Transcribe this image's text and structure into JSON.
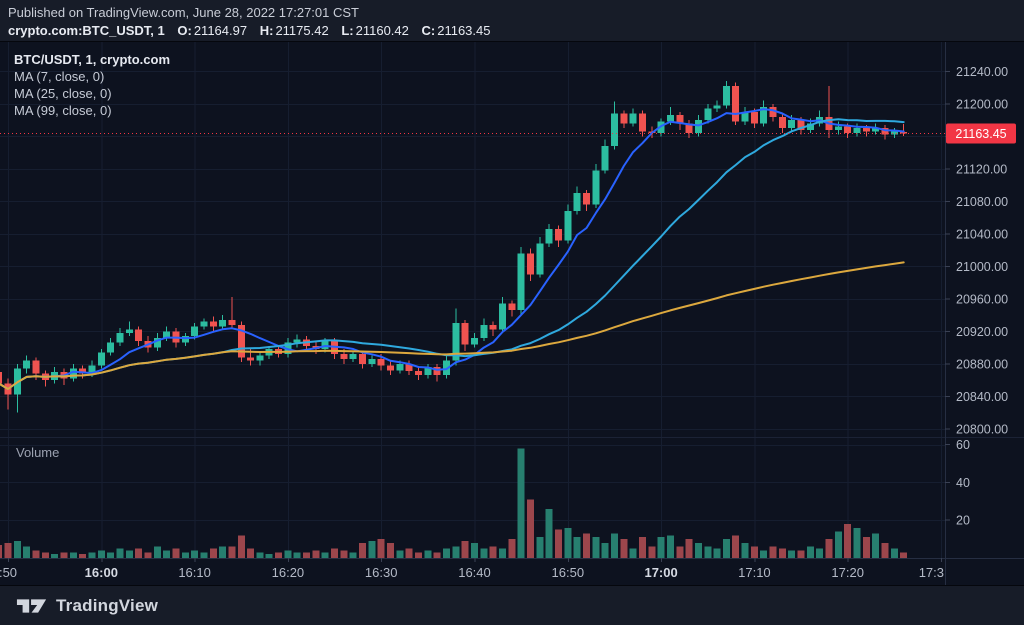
{
  "header": {
    "published_line": "Published on TradingView.com, June 28, 2022 17:27:01 CST",
    "symbol": "crypto.com:BTC_USDT, 1",
    "ohlc": {
      "o_label": "O:",
      "o": "21164.97",
      "h_label": "H:",
      "h": "21175.42",
      "l_label": "L:",
      "l": "21160.42",
      "c_label": "C:",
      "c": "21163.45"
    }
  },
  "legend": {
    "title": "BTC/USDT, 1, crypto.com",
    "ma": [
      "MA (7, close, 0)",
      "MA (25, close, 0)",
      "MA (99, close, 0)"
    ]
  },
  "volume_pane": {
    "label": "Volume"
  },
  "footer": {
    "brand": "TradingView"
  },
  "colors": {
    "background": "#0d121f",
    "panel": "#171c28",
    "up": "#2cbda0",
    "down": "#f05350",
    "vol_up": "#277f6f",
    "vol_down": "#9c464c",
    "ma7": "#2962ff",
    "ma25": "#2fa9de",
    "ma99": "#dca83e",
    "grid": "#161e30",
    "axis_border": "#262e42",
    "pane_divider": "#1b2235",
    "tick_dash": "#3a4154",
    "axis_text": "#b4bac7",
    "axis_text_bold": "#d6dae3",
    "price_line": "#f23645",
    "tag_bg": "#f23645",
    "tag_text": "#ffffff"
  },
  "chart_data": {
    "type": "candlestick",
    "title": "BTC/USDT, 1, crypto.com",
    "exchange": "crypto.com",
    "interval_minutes": 1,
    "start_time": "15:50",
    "first_minute": -1,
    "last_price": 21163.45,
    "last_price_label": "21163.45",
    "price_range": [
      20790,
      21276
    ],
    "volume_range": [
      0,
      64
    ],
    "legend_position": "top-left",
    "grid": true,
    "price_ticks": [
      {
        "value": 21240,
        "label": "21240.00"
      },
      {
        "value": 21200,
        "label": "21200.00"
      },
      {
        "value": 21160,
        "label": "21160.00",
        "hidden": true
      },
      {
        "value": 21120,
        "label": "21120.00"
      },
      {
        "value": 21080,
        "label": "21080.00"
      },
      {
        "value": 21040,
        "label": "21040.00"
      },
      {
        "value": 21000,
        "label": "21000.00"
      },
      {
        "value": 20960,
        "label": "20960.00"
      },
      {
        "value": 20920,
        "label": "20920.00"
      },
      {
        "value": 20880,
        "label": "20880.00"
      },
      {
        "value": 20840,
        "label": "20840.00"
      },
      {
        "value": 20800,
        "label": "20800.00"
      }
    ],
    "volume_ticks": [
      {
        "value": 60,
        "label": "60"
      },
      {
        "value": 40,
        "label": "40"
      },
      {
        "value": 20,
        "label": "20"
      }
    ],
    "time_ticks": [
      {
        "minute": 0,
        "label": ":50",
        "bold": false
      },
      {
        "minute": 10,
        "label": "16:00",
        "bold": true
      },
      {
        "minute": 20,
        "label": "16:10",
        "bold": false
      },
      {
        "minute": 30,
        "label": "16:20",
        "bold": false
      },
      {
        "minute": 40,
        "label": "16:30",
        "bold": false
      },
      {
        "minute": 50,
        "label": "16:40",
        "bold": false
      },
      {
        "minute": 60,
        "label": "16:50",
        "bold": false
      },
      {
        "minute": 70,
        "label": "17:00",
        "bold": true
      },
      {
        "minute": 80,
        "label": "17:10",
        "bold": false
      },
      {
        "minute": 90,
        "label": "17:20",
        "bold": false
      },
      {
        "minute": 100,
        "label": "17:3",
        "bold": false,
        "clip": true
      }
    ],
    "ma_series": [
      {
        "name": "MA (7, close, 0)",
        "window": 7,
        "color_key": "ma7"
      },
      {
        "name": "MA (25, close, 0)",
        "window": 25,
        "color_key": "ma25"
      },
      {
        "name": "MA (99, close, 0)",
        "window": 99,
        "color_key": "ma99"
      }
    ],
    "ohlcv": [
      [
        20870,
        20874,
        20846,
        20856,
        7
      ],
      [
        20856,
        20862,
        20824,
        20842,
        8
      ],
      [
        20842,
        20880,
        20820,
        20874,
        9
      ],
      [
        20874,
        20890,
        20868,
        20884,
        6
      ],
      [
        20884,
        20888,
        20860,
        20868,
        4
      ],
      [
        20868,
        20872,
        20852,
        20860,
        3
      ],
      [
        20860,
        20876,
        20856,
        20870,
        2
      ],
      [
        20870,
        20874,
        20854,
        20862,
        3
      ],
      [
        20862,
        20880,
        20858,
        20874,
        3
      ],
      [
        20874,
        20878,
        20862,
        20868,
        2
      ],
      [
        20868,
        20884,
        20864,
        20878,
        3
      ],
      [
        20878,
        20898,
        20874,
        20894,
        4
      ],
      [
        20894,
        20912,
        20890,
        20906,
        3
      ],
      [
        20906,
        20924,
        20902,
        20918,
        5
      ],
      [
        20918,
        20932,
        20914,
        20922,
        4
      ],
      [
        20922,
        20926,
        20902,
        20908,
        5
      ],
      [
        20908,
        20914,
        20894,
        20900,
        3
      ],
      [
        20900,
        20918,
        20896,
        20912,
        6
      ],
      [
        20912,
        20926,
        20908,
        20920,
        4
      ],
      [
        20920,
        20924,
        20900,
        20906,
        5
      ],
      [
        20906,
        20918,
        20902,
        20914,
        3
      ],
      [
        20914,
        20930,
        20910,
        20926,
        4
      ],
      [
        20926,
        20936,
        20922,
        20932,
        3
      ],
      [
        20932,
        20938,
        20920,
        20926,
        5
      ],
      [
        20926,
        20940,
        20922,
        20934,
        6
      ],
      [
        20934,
        20962,
        20924,
        20928,
        6
      ],
      [
        20928,
        20932,
        20882,
        20888,
        12
      ],
      [
        20888,
        20898,
        20878,
        20884,
        5
      ],
      [
        20884,
        20894,
        20878,
        20890,
        3
      ],
      [
        20890,
        20902,
        20886,
        20898,
        2
      ],
      [
        20898,
        20902,
        20888,
        20892,
        3
      ],
      [
        20892,
        20912,
        20888,
        20906,
        4
      ],
      [
        20906,
        20916,
        20900,
        20910,
        3
      ],
      [
        20910,
        20914,
        20896,
        20902,
        3
      ],
      [
        20902,
        20908,
        20892,
        20898,
        4
      ],
      [
        20898,
        20912,
        20894,
        20908,
        3
      ],
      [
        20908,
        20912,
        20886,
        20892,
        5
      ],
      [
        20892,
        20898,
        20880,
        20886,
        4
      ],
      [
        20886,
        20896,
        20882,
        20892,
        3
      ],
      [
        20892,
        20896,
        20874,
        20880,
        8
      ],
      [
        20880,
        20890,
        20876,
        20886,
        9
      ],
      [
        20886,
        20892,
        20872,
        20878,
        10
      ],
      [
        20878,
        20884,
        20866,
        20872,
        8
      ],
      [
        20872,
        20884,
        20868,
        20880,
        4
      ],
      [
        20880,
        20884,
        20866,
        20871,
        5
      ],
      [
        20871,
        20877,
        20860,
        20866,
        3
      ],
      [
        20866,
        20880,
        20862,
        20876,
        4
      ],
      [
        20876,
        20880,
        20858,
        20866,
        3
      ],
      [
        20866,
        20890,
        20862,
        20884,
        5
      ],
      [
        20884,
        20948,
        20878,
        20930,
        6
      ],
      [
        20930,
        20934,
        20896,
        20904,
        9
      ],
      [
        20904,
        20918,
        20900,
        20912,
        8
      ],
      [
        20912,
        20936,
        20908,
        20928,
        5
      ],
      [
        20928,
        20932,
        20914,
        20922,
        6
      ],
      [
        20922,
        20962,
        20918,
        20954,
        5
      ],
      [
        20954,
        20958,
        20938,
        20946,
        10
      ],
      [
        20946,
        21024,
        20940,
        21016,
        58
      ],
      [
        21016,
        21022,
        20982,
        20990,
        31
      ],
      [
        20990,
        21036,
        20986,
        21028,
        11
      ],
      [
        21028,
        21052,
        21024,
        21046,
        26
      ],
      [
        21046,
        21050,
        21024,
        21032,
        15
      ],
      [
        21032,
        21076,
        21028,
        21068,
        16
      ],
      [
        21068,
        21098,
        21064,
        21090,
        11
      ],
      [
        21090,
        21094,
        21068,
        21076,
        13
      ],
      [
        21076,
        21126,
        21072,
        21118,
        11
      ],
      [
        21118,
        21156,
        21114,
        21148,
        8
      ],
      [
        21148,
        21203,
        21144,
        21188,
        13
      ],
      [
        21188,
        21192,
        21170,
        21176,
        10
      ],
      [
        21176,
        21194,
        21172,
        21188,
        5
      ],
      [
        21188,
        21192,
        21160,
        21166,
        11
      ],
      [
        21166,
        21172,
        21158,
        21164,
        6
      ],
      [
        21164,
        21182,
        21160,
        21178,
        11
      ],
      [
        21178,
        21196,
        21174,
        21186,
        12
      ],
      [
        21186,
        21190,
        21168,
        21176,
        6
      ],
      [
        21176,
        21180,
        21158,
        21164,
        10
      ],
      [
        21164,
        21186,
        21160,
        21180,
        8
      ],
      [
        21180,
        21200,
        21176,
        21194,
        6
      ],
      [
        21194,
        21204,
        21190,
        21198,
        5
      ],
      [
        21198,
        21228,
        21194,
        21222,
        10
      ],
      [
        21222,
        21226,
        21174,
        21178,
        12
      ],
      [
        21178,
        21196,
        21174,
        21190,
        8
      ],
      [
        21190,
        21194,
        21170,
        21176,
        6
      ],
      [
        21176,
        21204,
        21172,
        21196,
        4
      ],
      [
        21196,
        21200,
        21178,
        21184,
        6
      ],
      [
        21184,
        21188,
        21164,
        21170,
        5
      ],
      [
        21170,
        21186,
        21166,
        21180,
        4
      ],
      [
        21180,
        21184,
        21162,
        21168,
        4
      ],
      [
        21168,
        21182,
        21164,
        21176,
        6
      ],
      [
        21176,
        21192,
        21172,
        21184,
        5
      ],
      [
        21184,
        21222,
        21158,
        21168,
        10
      ],
      [
        21168,
        21178,
        21162,
        21172,
        14
      ],
      [
        21172,
        21176,
        21158,
        21164,
        18
      ],
      [
        21164,
        21176,
        21160,
        21170,
        16
      ],
      [
        21170,
        21174,
        21160,
        21166,
        11
      ],
      [
        21166,
        21176,
        21162,
        21170,
        13
      ],
      [
        21170,
        21174,
        21156,
        21162,
        8
      ],
      [
        21162,
        21170,
        21158,
        21166,
        5
      ],
      [
        21164.97,
        21175.42,
        21160.42,
        21163.45,
        3
      ]
    ]
  }
}
